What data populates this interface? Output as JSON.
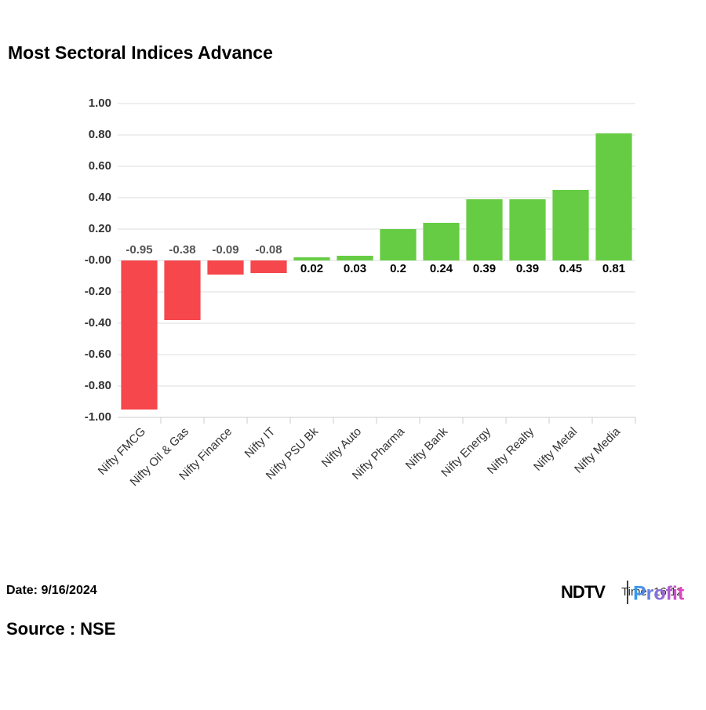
{
  "chart_data": {
    "type": "bar",
    "title": "Most Sectoral Indices Advance",
    "categories": [
      "Nifty FMCG",
      "Nifty Oil & Gas",
      "Nifty Finance",
      "Nifty IT",
      "Nifty PSU Bk",
      "Nifty Auto",
      "Nifty Pharma",
      "Nifty Bank",
      "Nifty Energy",
      "Nifty Realty",
      "Nifty Metal",
      "Nifty Media"
    ],
    "values": [
      -0.95,
      -0.38,
      -0.09,
      -0.08,
      0.02,
      0.03,
      0.2,
      0.24,
      0.39,
      0.39,
      0.45,
      0.81
    ],
    "positive_color": "#66cc44",
    "negative_color": "#f5474c",
    "ylim": [
      -1,
      1
    ],
    "yticks": [
      {
        "value": 1,
        "label": "1.00"
      },
      {
        "value": 0.8,
        "label": "0.80"
      },
      {
        "value": 0.6,
        "label": "0.60"
      },
      {
        "value": 0.4,
        "label": "0.40"
      },
      {
        "value": 0.2,
        "label": "0.20"
      },
      {
        "value": 0,
        "label": "-0.00"
      },
      {
        "value": -0.2,
        "label": "-0.20"
      },
      {
        "value": -0.4,
        "label": "-0.40"
      },
      {
        "value": -0.6,
        "label": "-0.60"
      },
      {
        "value": -0.8,
        "label": "-0.80"
      },
      {
        "value": -1,
        "label": "-1.00"
      }
    ],
    "grid": true
  },
  "footer": {
    "date": "Date: 9/16/2024",
    "source": "Source : NSE",
    "time": "Time: 16:12"
  },
  "logo": {
    "brand": "NDTV",
    "product": "Profit"
  }
}
